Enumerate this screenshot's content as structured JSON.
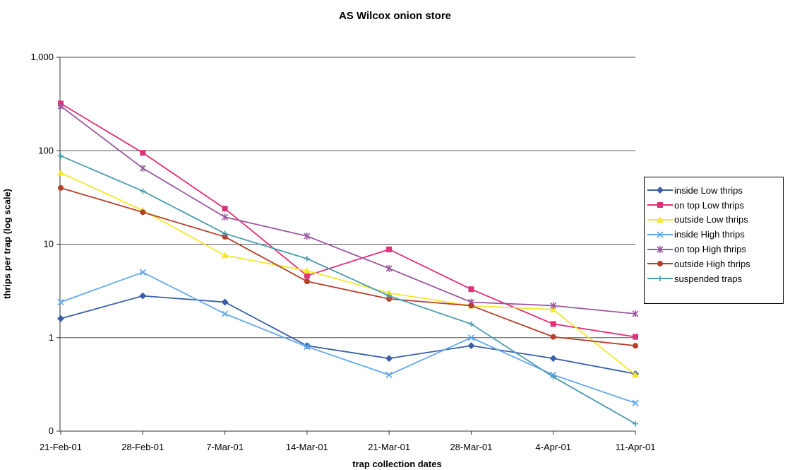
{
  "chart_data": {
    "type": "line",
    "title": "AS Wilcox onion store",
    "xlabel": "trap collection dates",
    "ylabel": "thrips per trap (log scale)",
    "yscale": "log",
    "ylim": [
      0.1,
      1000
    ],
    "y_tick_labels": [
      "0",
      "1",
      "10",
      "100",
      "1,000"
    ],
    "y_tick_values": [
      0.1,
      1,
      10,
      100,
      1000
    ],
    "grid": "horizontal major gridlines",
    "legend_position": "right",
    "categories": [
      "21-Feb-01",
      "28-Feb-01",
      "7-Mar-01",
      "14-Mar-01",
      "21-Mar-01",
      "28-Mar-01",
      "4-Apr-01",
      "11-Apr-01"
    ],
    "series": [
      {
        "name": "inside Low thrips",
        "color": "#3a5ea8",
        "marker": "diamond",
        "values": [
          1.6,
          2.8,
          2.4,
          0.82,
          0.6,
          0.82,
          0.6,
          0.41
        ]
      },
      {
        "name": "on top Low thrips",
        "color": "#e0307a",
        "marker": "square",
        "values": [
          320,
          95,
          24,
          4.6,
          8.8,
          3.3,
          1.4,
          1.02
        ]
      },
      {
        "name": "outside Low thrips",
        "color": "#f2e830",
        "marker": "triangle",
        "values": [
          58,
          23,
          7.6,
          5.2,
          3.0,
          2.2,
          2.0,
          0.4
        ]
      },
      {
        "name": "inside High thrips",
        "color": "#64a8f0",
        "marker": "x",
        "values": [
          2.4,
          5.0,
          1.8,
          0.8,
          0.4,
          1.0,
          0.4,
          0.2
        ]
      },
      {
        "name": "on top High thrips",
        "color": "#9b5aa0",
        "marker": "star",
        "values": [
          300,
          65,
          19.5,
          12.2,
          5.5,
          2.4,
          2.2,
          1.8
        ]
      },
      {
        "name": "outside High thrips",
        "color": "#b5402a",
        "marker": "circle",
        "values": [
          40,
          22,
          12,
          4.0,
          2.6,
          2.2,
          1.02,
          0.82
        ]
      },
      {
        "name": "suspended traps",
        "color": "#4a9cb0",
        "marker": "plus",
        "values": [
          88,
          37,
          13,
          7.0,
          2.8,
          1.4,
          0.38,
          0.12
        ]
      }
    ]
  }
}
